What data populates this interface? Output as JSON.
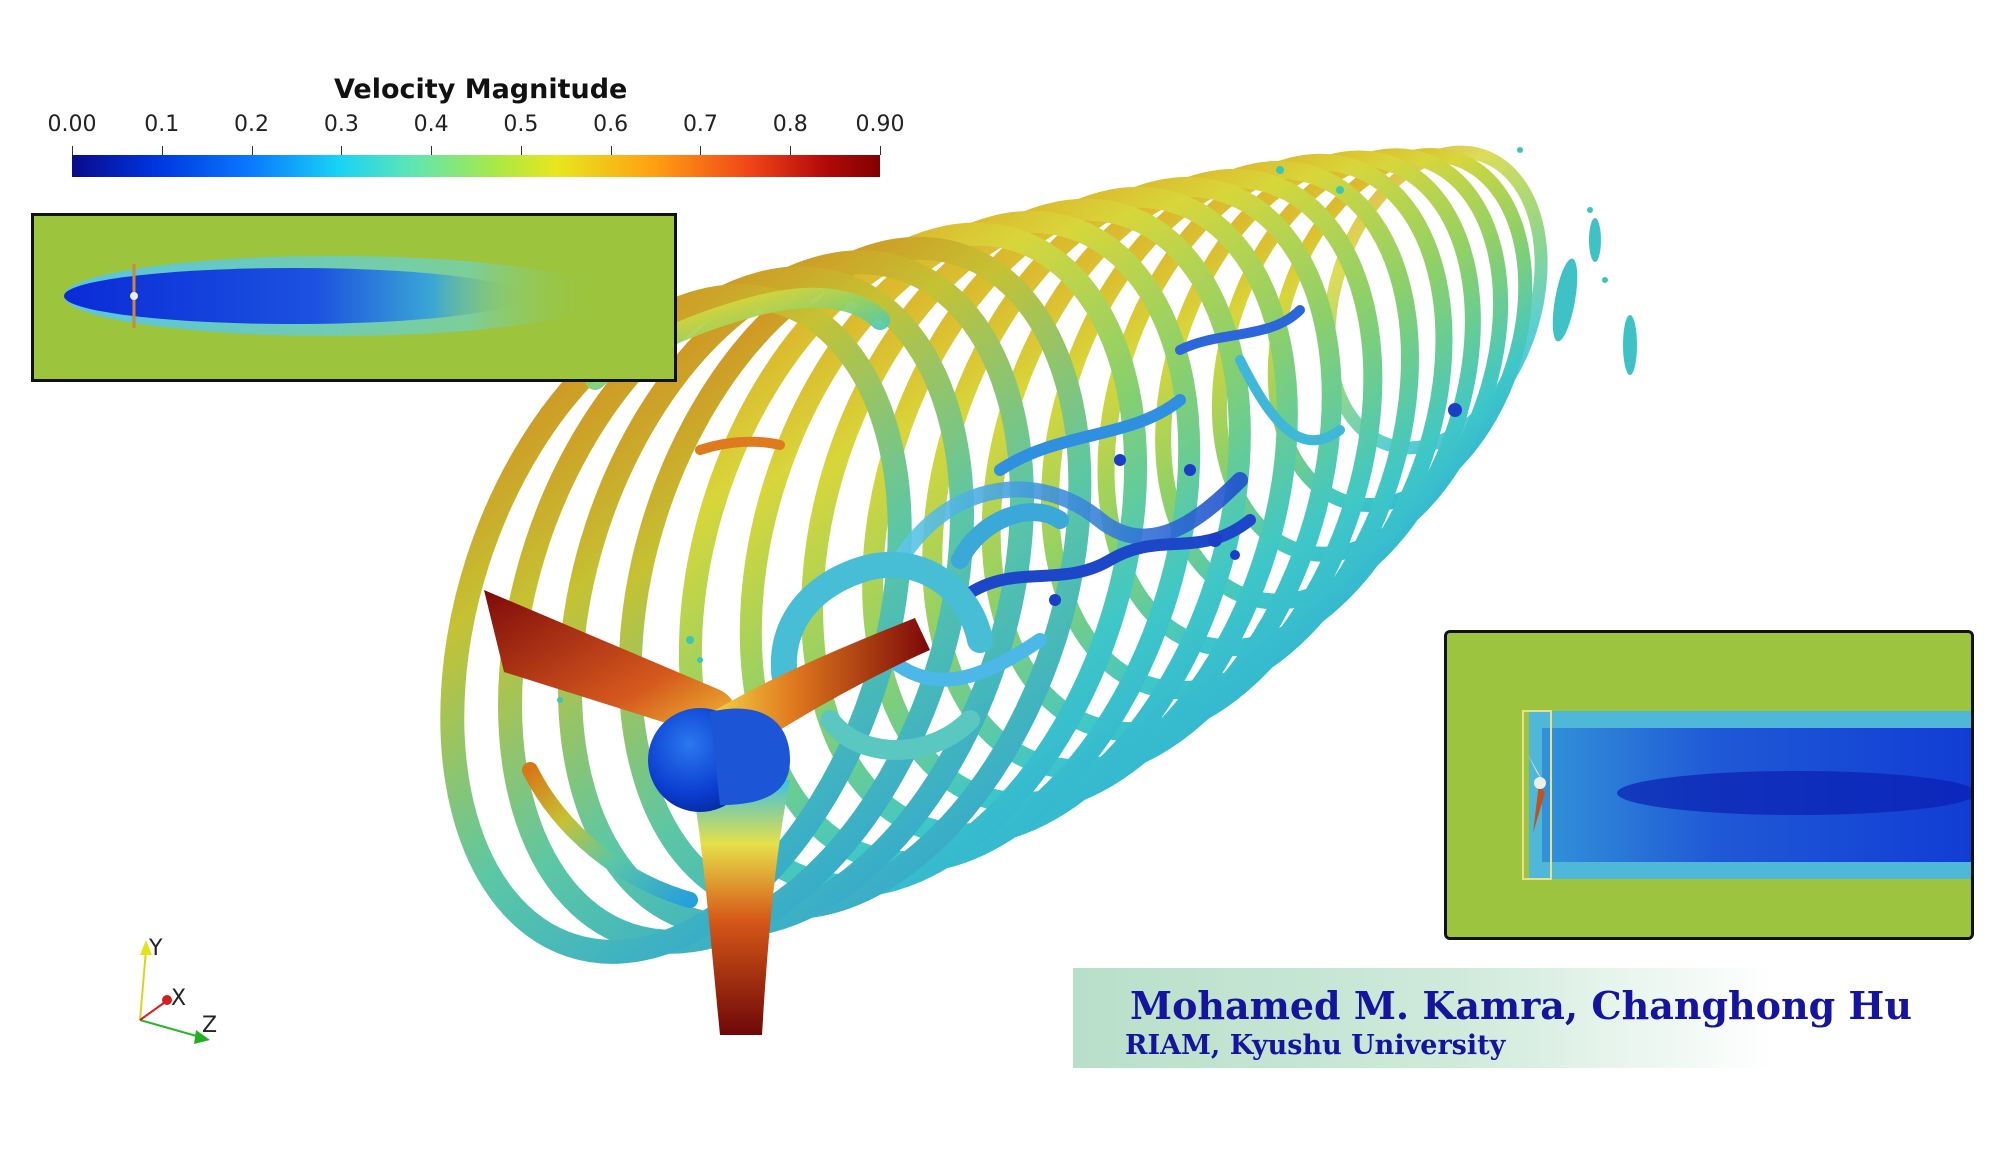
{
  "colorbar": {
    "title": "Velocity Magnitude",
    "ticks": [
      "0.00",
      "0.1",
      "0.2",
      "0.3",
      "0.4",
      "0.5",
      "0.6",
      "0.7",
      "0.8",
      "0.90"
    ],
    "tick_values": [
      0.0,
      0.1,
      0.2,
      0.3,
      0.4,
      0.5,
      0.6,
      0.7,
      0.8,
      0.9
    ],
    "range": [
      0.0,
      0.9
    ],
    "colors": [
      "#0a0a8c",
      "#0033dd",
      "#0a78ff",
      "#19d2f5",
      "#5ee6b4",
      "#a6e84a",
      "#e8e61e",
      "#ffa012",
      "#f04418",
      "#b40a0a",
      "#820000"
    ]
  },
  "axes": {
    "y": "Y",
    "x": "X",
    "z": "Z"
  },
  "credits": {
    "authors": "Mohamed M. Kamra, Changhong Hu",
    "affiliation": "RIAM, Kyushu University"
  }
}
